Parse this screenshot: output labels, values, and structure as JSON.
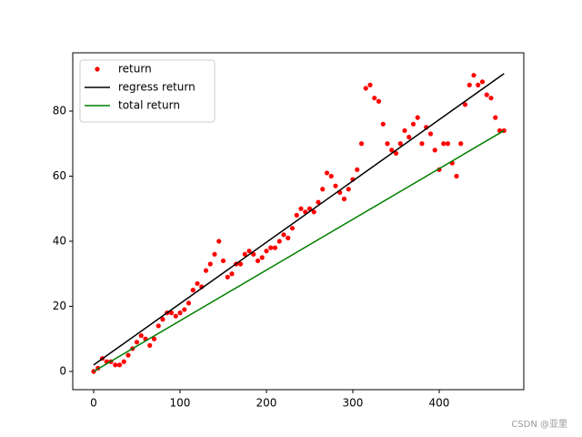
{
  "chart_data": {
    "type": "line",
    "xlim": [
      -24.2,
      497.9
    ],
    "ylim": [
      -5.6,
      97.9
    ],
    "xticks": [
      0,
      100,
      200,
      300,
      400
    ],
    "yticks": [
      0,
      20,
      40,
      60,
      80
    ],
    "grid": false,
    "legend": "upper left",
    "annotation": "CSDN @亚里",
    "series": [
      {
        "name": "return",
        "color": "#ff0000",
        "style": "dots",
        "x": [
          0,
          5,
          10,
          15,
          20,
          25,
          30,
          35,
          40,
          45,
          50,
          55,
          60,
          65,
          70,
          75,
          80,
          85,
          90,
          95,
          100,
          105,
          110,
          115,
          120,
          125,
          130,
          135,
          140,
          145,
          150,
          155,
          160,
          165,
          170,
          175,
          180,
          185,
          190,
          195,
          200,
          205,
          210,
          215,
          220,
          225,
          230,
          235,
          240,
          245,
          250,
          255,
          260,
          265,
          270,
          275,
          280,
          285,
          290,
          295,
          300,
          305,
          310,
          315,
          320,
          325,
          330,
          335,
          340,
          345,
          350,
          355,
          360,
          365,
          370,
          375,
          380,
          385,
          390,
          395,
          400,
          405,
          410,
          415,
          420,
          425,
          430,
          435,
          440,
          445,
          450,
          455,
          460,
          465,
          470,
          475
        ],
        "values": [
          0,
          1,
          4,
          3,
          3,
          2,
          2,
          3,
          5,
          7,
          9,
          11,
          10,
          8,
          10,
          14,
          16,
          18,
          18,
          17,
          18,
          19,
          21,
          25,
          27,
          26,
          31,
          33,
          36,
          40,
          34,
          29,
          30,
          33,
          33,
          36,
          37,
          36,
          34,
          35,
          37,
          38,
          38,
          40,
          42,
          41,
          44,
          48,
          50,
          49,
          50,
          49,
          52,
          56,
          61,
          60,
          57,
          55,
          53,
          56,
          59,
          62,
          70,
          87,
          88,
          84,
          83,
          76,
          70,
          68,
          67,
          70,
          74,
          72,
          76,
          78,
          70,
          75,
          73,
          68,
          62,
          70,
          70,
          64,
          60,
          70,
          82,
          88,
          91,
          88,
          89,
          85,
          84,
          78,
          74,
          74
        ]
      },
      {
        "name": "regress return",
        "color": "#000000",
        "style": "line",
        "x": [
          0,
          475
        ],
        "values": [
          2,
          91.5
        ]
      },
      {
        "name": "total return",
        "color": "#008000",
        "style": "line",
        "x": [
          0,
          475
        ],
        "values": [
          0,
          74
        ]
      }
    ]
  }
}
